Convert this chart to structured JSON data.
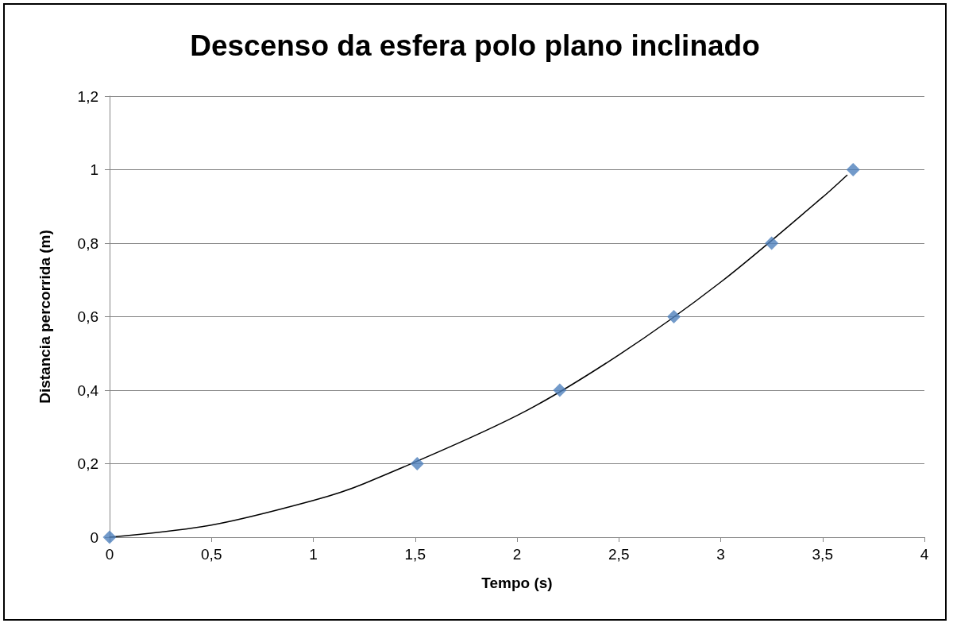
{
  "chart_data": {
    "type": "scatter",
    "title": "Descenso da esfera polo plano inclinado",
    "xlabel": "Tempo (s)",
    "ylabel": "Distancia percorrida (m)",
    "series": [
      {
        "color": "#4f81bd",
        "marker": "diamond",
        "x": [
          0,
          1.51,
          2.21,
          2.77,
          3.25,
          3.65
        ],
        "values": [
          0,
          0.2,
          0.4,
          0.6,
          0.8,
          1
        ]
      },
      {
        "type": "line",
        "color": "#000000",
        "marker": "none",
        "line_style": "solid",
        "x": [
          0,
          0.5,
          1,
          1.25,
          2,
          2.5,
          3,
          3.5,
          3.62
        ],
        "values": [
          0,
          0.033,
          0.1,
          0.146,
          0.331,
          0.496,
          0.694,
          0.925,
          0.985
        ]
      }
    ],
    "xlim": [
      0,
      4
    ],
    "xticks": [
      0,
      {
        "value": 0.5,
        "label": "0,5"
      },
      1,
      {
        "value": 1.5,
        "label": "1,5"
      },
      2,
      {
        "value": 2.5,
        "label": "2,5"
      },
      3,
      {
        "value": 3.5,
        "label": "3,5"
      },
      4
    ],
    "ylim": [
      0,
      1.2
    ],
    "yticks": [
      0,
      {
        "value": 0.2,
        "label": "0,2"
      },
      {
        "value": 0.4,
        "label": "0,4"
      },
      {
        "value": 0.6,
        "label": "0,6"
      },
      {
        "value": 0.8,
        "label": "0,8"
      },
      1,
      {
        "value": 1.2,
        "label": "1,2"
      }
    ],
    "grid": "y"
  }
}
